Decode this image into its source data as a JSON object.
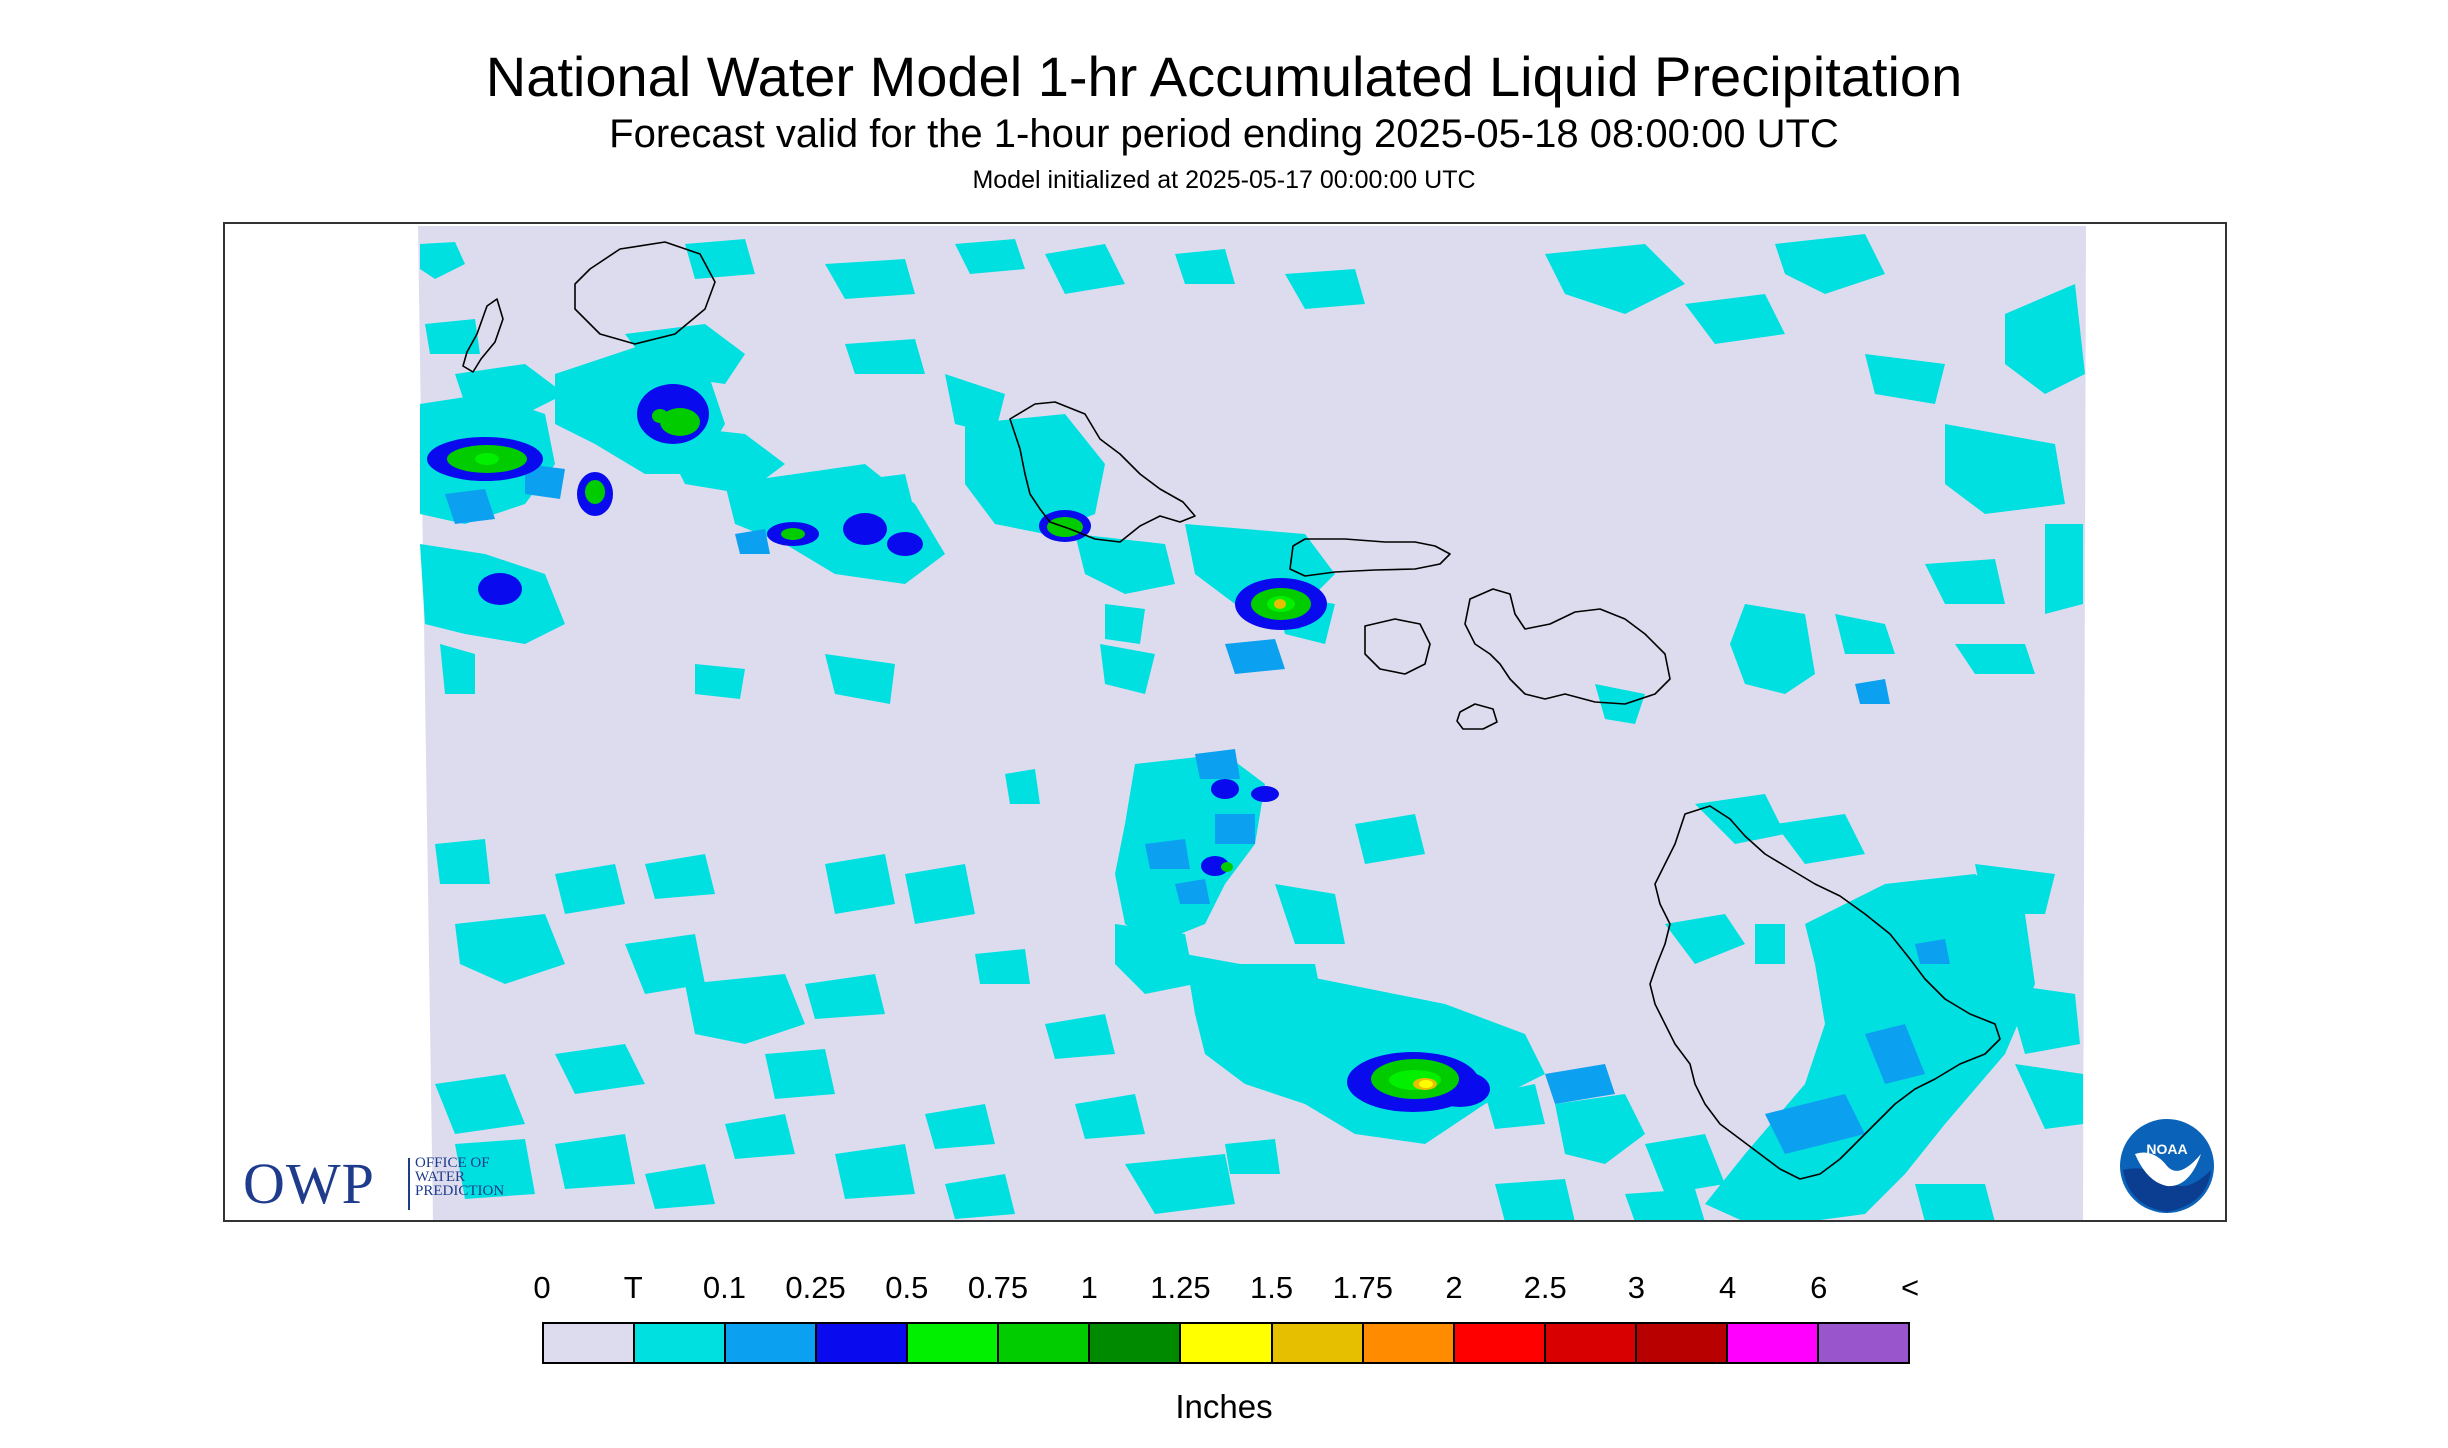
{
  "header": {
    "title": "National Water Model 1-hr Accumulated Liquid Precipitation",
    "subtitle": "Forecast valid for the 1-hour period ending 2025-05-18 08:00:00 UTC",
    "init_line": "Model initialized at 2025-05-17 00:00:00 UTC"
  },
  "map": {
    "background_color": "#dcdcee",
    "coast_color": "#000000",
    "islands": [
      "Kauai",
      "Niihau",
      "Oahu",
      "Molokai",
      "Lanai",
      "Maui",
      "Kahoolawe",
      "Hawaii"
    ]
  },
  "logos": {
    "owp": {
      "letters": "OWP",
      "line1": "OFFICE OF",
      "line2": "WATER",
      "line3": "PREDICTION"
    },
    "noaa": {
      "text": "NOAA"
    }
  },
  "legend": {
    "labels": [
      "0",
      "T",
      "0.1",
      "0.25",
      "0.5",
      "0.75",
      "1",
      "1.25",
      "1.5",
      "1.75",
      "2",
      "2.5",
      "3",
      "4",
      "6",
      "<"
    ],
    "colors": [
      "#dcdcee",
      "#00e0e0",
      "#0ca0f0",
      "#0a0aee",
      "#00f000",
      "#00cc00",
      "#008a00",
      "#ffff00",
      "#e6bf00",
      "#ff8c00",
      "#ff0000",
      "#d80000",
      "#b80000",
      "#ff00ff",
      "#9955cc"
    ],
    "units": "Inches"
  }
}
